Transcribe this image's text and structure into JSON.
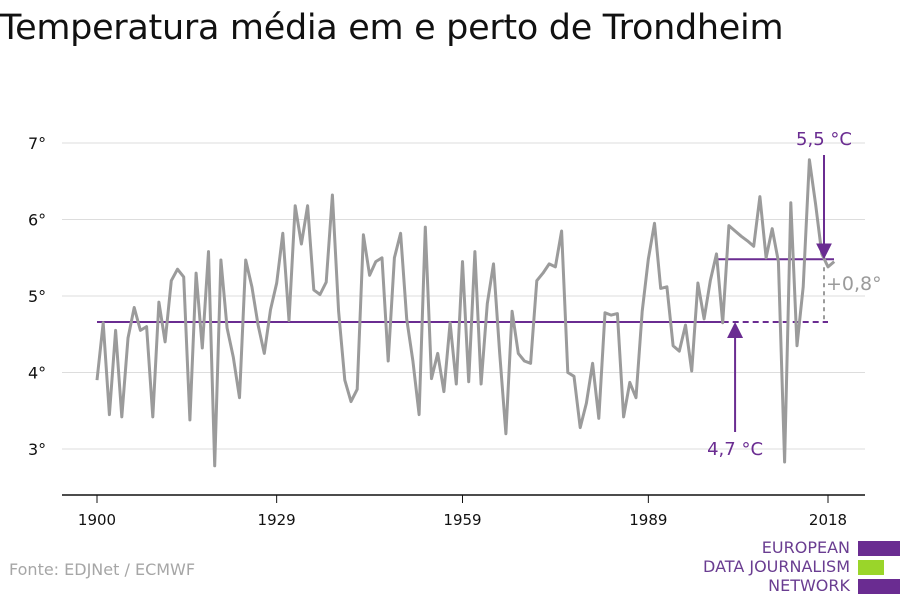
{
  "title": "Temperatura média em e perto de Trondheim",
  "source": "Fonte: EDJNet / ECMWF",
  "logo": {
    "lines": [
      "EUROPEAN",
      "DATA JOURNALISM",
      "NETWORK"
    ],
    "colors": [
      "#6a2c91",
      "#9ad52a",
      "#6a2c91"
    ]
  },
  "annotations": {
    "recent_avg": "5,5 °C",
    "early_avg": "4,7 °C",
    "difference": "+0,8°"
  },
  "colors": {
    "line": "#9b9b9b",
    "accent": "#6a2c91",
    "grid": "#dddddd",
    "axis": "#111111"
  },
  "chart_data": {
    "type": "line",
    "title": "Temperatura média em e perto de Trondheim",
    "x_ticks": [
      1900,
      1929,
      1959,
      1989,
      2018
    ],
    "y_ticks": [
      3,
      4,
      5,
      6,
      7
    ],
    "y_tick_labels": [
      "3°",
      "4°",
      "5°",
      "6°",
      "7°"
    ],
    "xlim": [
      1890,
      2024
    ],
    "ylim": [
      2.4,
      7.2
    ],
    "grid": true,
    "series": [
      {
        "start_year": 1900,
        "values": [
          3.9,
          4.65,
          3.45,
          4.55,
          3.42,
          4.45,
          4.85,
          4.55,
          4.6,
          3.42,
          4.92,
          4.4,
          5.2,
          5.35,
          5.25,
          3.38,
          5.3,
          4.32,
          5.58,
          2.78,
          5.47,
          4.58,
          4.2,
          3.67,
          5.47,
          5.12,
          4.62,
          4.25,
          4.82,
          5.17,
          5.82,
          4.68,
          6.18,
          5.68,
          6.18,
          5.08,
          5.02,
          5.18,
          6.32,
          4.8,
          3.9,
          3.62,
          3.78,
          5.8,
          5.27,
          5.45,
          5.5,
          4.15,
          5.5,
          5.82,
          4.7,
          4.15,
          3.45,
          5.9,
          3.92,
          4.25,
          3.75,
          4.65,
          3.85,
          5.45,
          3.88,
          5.58,
          3.85,
          4.9,
          5.42,
          4.25,
          3.2,
          4.8,
          4.25,
          4.15,
          4.12,
          5.2,
          5.3,
          5.42,
          5.38,
          5.85,
          4.0,
          3.95,
          3.28,
          3.6,
          4.12,
          3.4,
          4.78,
          4.75,
          4.77,
          3.42,
          3.87,
          3.67,
          4.8,
          5.48,
          5.95,
          5.1,
          5.12,
          4.35,
          4.28,
          4.62,
          4.02,
          5.17,
          4.7,
          5.2,
          5.55,
          4.65,
          5.92,
          5.85,
          5.78,
          5.72,
          5.65,
          6.3,
          5.5,
          5.88,
          5.45,
          2.83,
          6.22,
          4.35,
          5.12,
          6.78,
          6.2,
          5.55,
          5.38,
          5.45
        ]
      }
    ],
    "reference_lines": [
      {
        "value": 4.66,
        "from": 1900,
        "to": 2018
      },
      {
        "value": 5.48,
        "from": 2000,
        "to": 2018
      }
    ]
  }
}
